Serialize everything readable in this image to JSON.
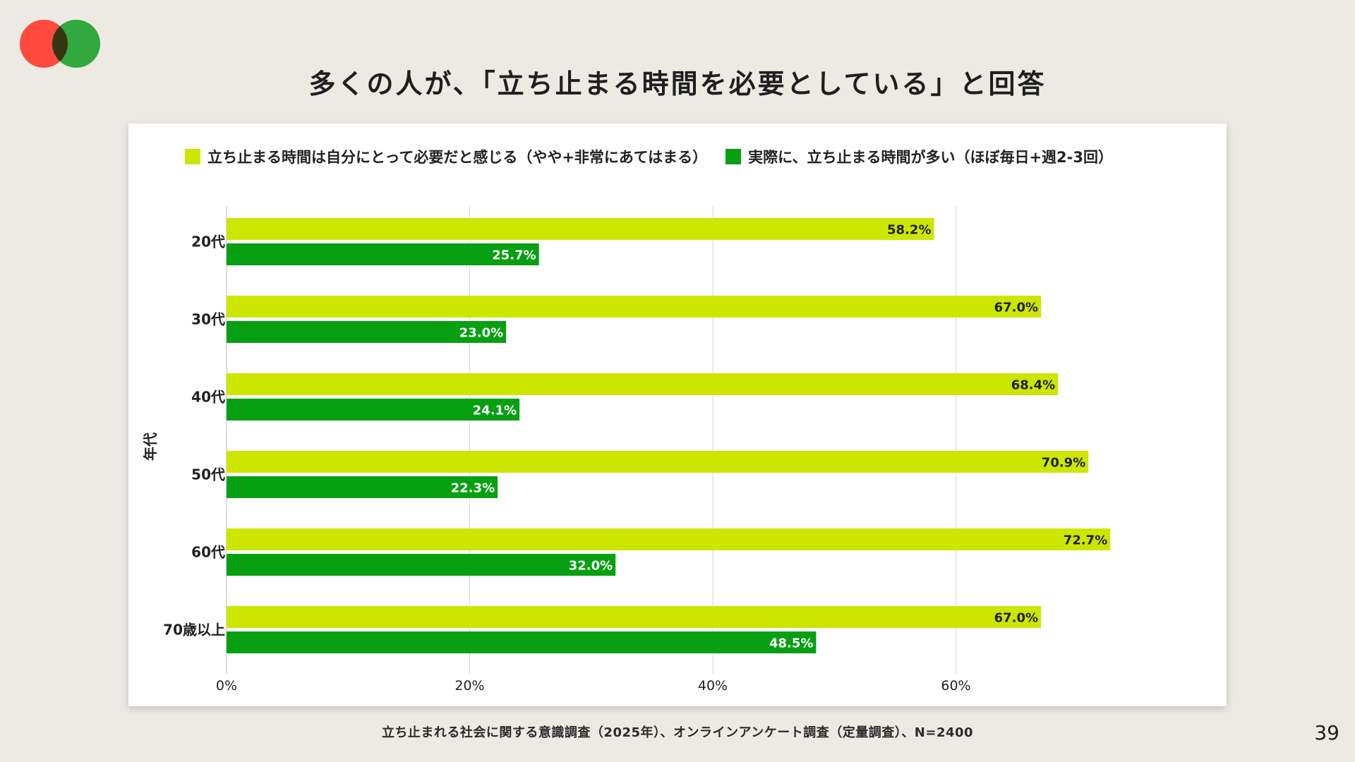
{
  "page": {
    "title": "多くの人が、「立ち止まる時間を必要としている」と回答",
    "source": "立ち止まれる社会に関する意識調査（2025年）、オンラインアンケート調査（定量調査）、N=2400",
    "page_number": "39"
  },
  "colors": {
    "series1": "#cde600",
    "series2": "#07a012",
    "logo_red": "#ff4a3d",
    "logo_green": "#2bb33c"
  },
  "chart_data": {
    "type": "bar",
    "orientation": "horizontal",
    "title": "",
    "ylabel": "年代",
    "xlabel": "",
    "categories": [
      "20代",
      "30代",
      "40代",
      "50代",
      "60代",
      "70歳以上"
    ],
    "series": [
      {
        "name": "立ち止まる時間は自分にとって必要だと感じる（やや+非常にあてはまる）",
        "values": [
          58.2,
          67.0,
          68.4,
          70.9,
          72.7,
          67.0
        ],
        "labels": [
          "58.2%",
          "67.0%",
          "68.4%",
          "70.9%",
          "72.7%",
          "67.0%"
        ]
      },
      {
        "name": "実際に、立ち止まる時間が多い（ほぼ毎日+週2-3回）",
        "values": [
          25.7,
          23.0,
          24.1,
          22.3,
          32.0,
          48.5
        ],
        "labels": [
          "25.7%",
          "23.0%",
          "24.1%",
          "22.3%",
          "32.0%",
          "48.5%"
        ]
      }
    ],
    "xlim": [
      0,
      80
    ],
    "xticks": [
      0,
      20,
      40,
      60
    ],
    "xtick_labels": [
      "0%",
      "20%",
      "40%",
      "60%"
    ],
    "grid": true,
    "legend_position": "top"
  }
}
